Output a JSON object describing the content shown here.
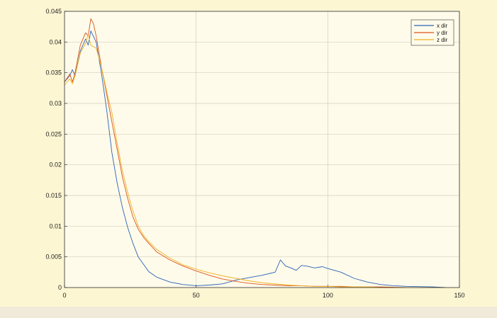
{
  "chart_data": {
    "type": "line",
    "title": "",
    "xlabel": "",
    "ylabel": "",
    "xlim": [
      0,
      150
    ],
    "ylim": [
      0,
      0.045
    ],
    "grid": true,
    "legend_placement": "top-right",
    "x_ticks": [
      "0",
      "50",
      "100",
      "150"
    ],
    "y_ticks": [
      "0",
      "0.005",
      "0.01",
      "0.015",
      "0.02",
      "0.025",
      "0.03",
      "0.035",
      "0.04",
      "0.045"
    ],
    "series": [
      {
        "name": "x dir",
        "color": "#2a62b8",
        "x": [
          0,
          2,
          3,
          4,
          6,
          8,
          9,
          10,
          12,
          14,
          16,
          18,
          20,
          22,
          24,
          26,
          28,
          30,
          32,
          35,
          40,
          45,
          50,
          55,
          60,
          65,
          70,
          75,
          80,
          82,
          84,
          86,
          88,
          90,
          92,
          95,
          98,
          100,
          105,
          110,
          115,
          120,
          125,
          130,
          140,
          145
        ],
        "y": [
          0.0335,
          0.0345,
          0.0355,
          0.0345,
          0.0385,
          0.0405,
          0.0395,
          0.0418,
          0.04,
          0.035,
          0.029,
          0.022,
          0.017,
          0.013,
          0.0098,
          0.0072,
          0.005,
          0.0038,
          0.0026,
          0.0017,
          0.0009,
          0.0005,
          0.0003,
          0.0004,
          0.0006,
          0.0012,
          0.0016,
          0.002,
          0.0025,
          0.0045,
          0.0035,
          0.0032,
          0.0028,
          0.0036,
          0.0035,
          0.0032,
          0.0034,
          0.0031,
          0.0025,
          0.0015,
          0.0009,
          0.0005,
          0.0003,
          0.0002,
          0.0001,
          0.0
        ]
      },
      {
        "name": "y dir",
        "color": "#d9541c",
        "x": [
          0,
          2,
          3,
          4,
          6,
          8,
          9,
          10,
          11,
          12,
          14,
          16,
          18,
          20,
          22,
          24,
          26,
          28,
          30,
          32,
          35,
          40,
          45,
          50,
          55,
          60,
          65,
          70,
          75,
          80,
          85,
          90,
          95,
          100,
          105,
          110,
          115,
          120,
          130,
          140,
          145
        ],
        "y": [
          0.0335,
          0.0348,
          0.0335,
          0.035,
          0.0395,
          0.0415,
          0.041,
          0.0438,
          0.043,
          0.041,
          0.036,
          0.0315,
          0.027,
          0.0225,
          0.018,
          0.0145,
          0.0115,
          0.0095,
          0.0082,
          0.0072,
          0.0058,
          0.0045,
          0.0035,
          0.0027,
          0.002,
          0.0014,
          0.001,
          0.0007,
          0.0005,
          0.0004,
          0.0003,
          0.0003,
          0.0002,
          0.0002,
          0.0002,
          0.0001,
          0.0001,
          0.0001,
          0.0,
          0.0,
          0.0
        ]
      },
      {
        "name": "z dir",
        "color": "#edb120",
        "x": [
          0,
          2,
          3,
          4,
          6,
          8,
          9,
          10,
          12,
          14,
          16,
          18,
          20,
          22,
          24,
          26,
          28,
          30,
          32,
          35,
          40,
          45,
          50,
          55,
          60,
          65,
          70,
          75,
          80,
          85,
          90,
          95,
          100,
          105,
          110,
          115,
          120,
          130,
          140,
          145
        ],
        "y": [
          0.033,
          0.034,
          0.0332,
          0.0345,
          0.0382,
          0.0398,
          0.0412,
          0.0395,
          0.039,
          0.036,
          0.032,
          0.0285,
          0.0235,
          0.019,
          0.0155,
          0.0125,
          0.01,
          0.0085,
          0.0075,
          0.0062,
          0.0048,
          0.0037,
          0.003,
          0.0024,
          0.0019,
          0.0015,
          0.0011,
          0.0008,
          0.0006,
          0.0004,
          0.0003,
          0.0002,
          0.0002,
          0.0001,
          0.0001,
          0.0001,
          0.0,
          0.0,
          0.0,
          0.0
        ]
      }
    ]
  }
}
